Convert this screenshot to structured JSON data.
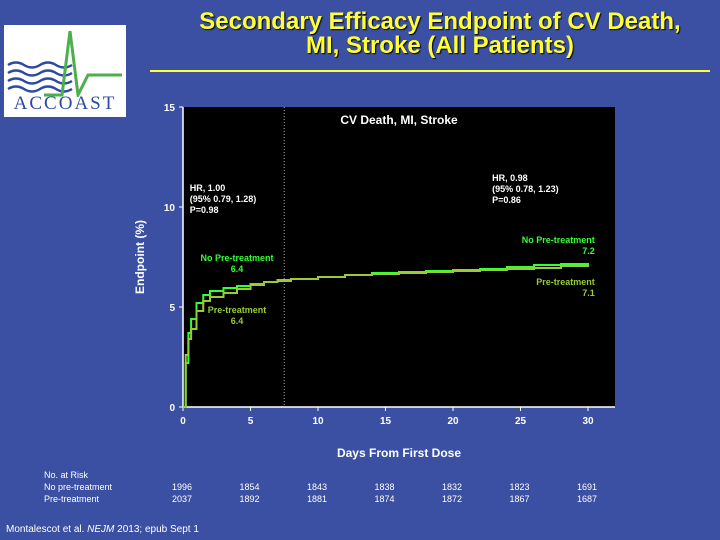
{
  "slide": {
    "title_line1": "Secondary Efficacy Endpoint of CV Death,",
    "title_line2": "MI, Stroke  (All Patients)",
    "logo_text": "ACCOAST",
    "citation_pre": "Montalescot et al. ",
    "citation_journal": "NEJM",
    "citation_post": " 2013; epub Sept 1"
  },
  "colors": {
    "background": "#3b4fa3",
    "title": "#ffff33",
    "plot_bg": "#000000",
    "no_pretreatment": "#33ff33",
    "pretreatment": "#99cc33",
    "annotation_text": "#ffffff"
  },
  "chart_data": {
    "type": "line",
    "title": "CV Death, MI, Stroke",
    "xlabel": "Days From First Dose",
    "ylabel": "Endpoint (%)",
    "xlim": [
      0,
      30
    ],
    "ylim": [
      0,
      15
    ],
    "xticks": [
      "0",
      "5",
      "10",
      "15",
      "20",
      "25",
      "30"
    ],
    "yticks": [
      "0",
      "5",
      "10",
      "15"
    ],
    "grid": false,
    "reference_line_x": 7.5,
    "series": [
      {
        "name": "No Pre-treatment",
        "x": [
          0,
          0.2,
          0.4,
          0.6,
          1,
          1.5,
          2,
          3,
          4,
          5,
          6,
          7,
          8,
          10,
          12,
          14,
          16,
          18,
          20,
          22,
          24,
          26,
          28,
          30
        ],
        "y": [
          0,
          2.2,
          3.7,
          4.4,
          5.2,
          5.6,
          5.8,
          5.95,
          6.05,
          6.15,
          6.25,
          6.3,
          6.4,
          6.5,
          6.6,
          6.7,
          6.75,
          6.8,
          6.85,
          6.9,
          7.0,
          7.1,
          7.15,
          7.2
        ]
      },
      {
        "name": "Pre-treatment",
        "x": [
          0,
          0.2,
          0.4,
          0.6,
          1,
          1.5,
          2,
          3,
          4,
          5,
          6,
          7,
          8,
          10,
          12,
          14,
          16,
          18,
          20,
          22,
          24,
          26,
          28,
          30
        ],
        "y": [
          0,
          2.6,
          3.4,
          3.9,
          4.8,
          5.3,
          5.5,
          5.7,
          5.9,
          6.1,
          6.25,
          6.35,
          6.4,
          6.5,
          6.6,
          6.65,
          6.7,
          6.75,
          6.8,
          6.85,
          6.9,
          6.95,
          7.05,
          7.1
        ]
      }
    ],
    "annotations": [
      {
        "lines": [
          "HR, 1.00",
          "(95% 0.79, 1.28)",
          "P=0.98"
        ],
        "color": "#ffffff",
        "x": 0.5,
        "y": 10.8,
        "anchor": "start"
      },
      {
        "lines": [
          "HR, 0.98",
          "(95% 0.78, 1.23)",
          "P=0.86"
        ],
        "color": "#ffffff",
        "x": 22.9,
        "y": 11.3,
        "anchor": "start"
      },
      {
        "lines": [
          "No Pre-treatment",
          "6.4"
        ],
        "color": "#33ff33",
        "x": 4,
        "y": 7.3,
        "anchor": "middle"
      },
      {
        "lines": [
          "No Pre-treatment",
          "7.2"
        ],
        "color": "#33ff33",
        "x": 30.5,
        "y": 8.2,
        "anchor": "end"
      },
      {
        "lines": [
          "Pre-treatment",
          "6.4"
        ],
        "color": "#99cc33",
        "x": 4,
        "y": 4.7,
        "anchor": "middle"
      },
      {
        "lines": [
          "Pre-treatment",
          "7.1"
        ],
        "color": "#99cc33",
        "x": 30.5,
        "y": 6.1,
        "anchor": "end"
      }
    ]
  },
  "risk_table": {
    "header": "No. at Risk",
    "rows": [
      {
        "label": "No pre-treatment",
        "values": [
          "1996",
          "1854",
          "1843",
          "1838",
          "1832",
          "1823",
          "1691"
        ]
      },
      {
        "label": "Pre-treatment",
        "values": [
          "2037",
          "1892",
          "1881",
          "1874",
          "1872",
          "1867",
          "1687"
        ]
      }
    ]
  }
}
